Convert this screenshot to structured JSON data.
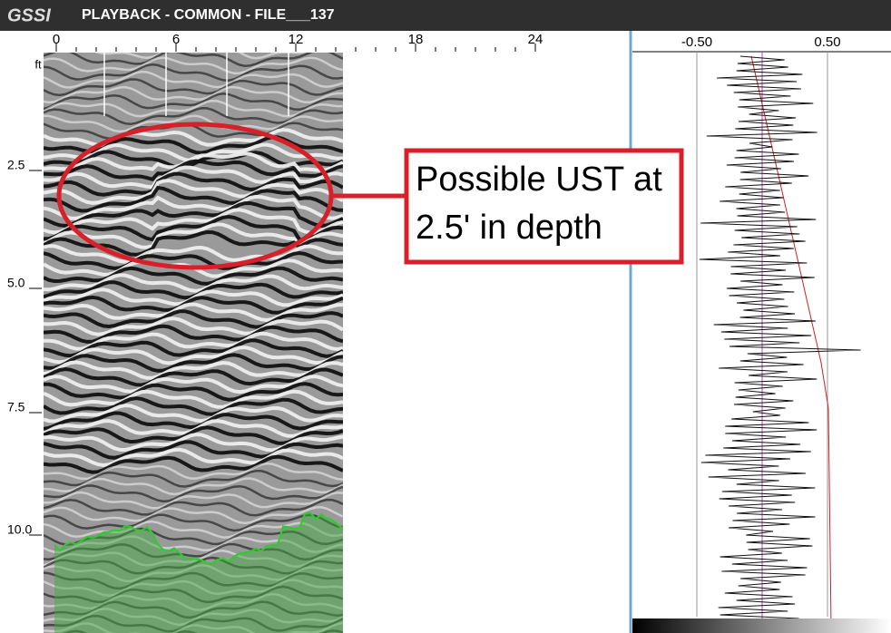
{
  "header": {
    "logo": "GSSI",
    "title": "PLAYBACK - COMMON - FILE___137"
  },
  "distance_axis": {
    "unit": "ft",
    "ticks": [
      "0",
      "6",
      "12",
      "18",
      "24"
    ]
  },
  "depth_axis": {
    "ticks": [
      "2.5",
      "5.0",
      "7.5",
      "10.0"
    ]
  },
  "annotation": {
    "lines": [
      "Possible UST at",
      "2.5' in depth"
    ]
  },
  "trace_axis": {
    "ticks": [
      "-0.50",
      "0.50"
    ]
  }
}
